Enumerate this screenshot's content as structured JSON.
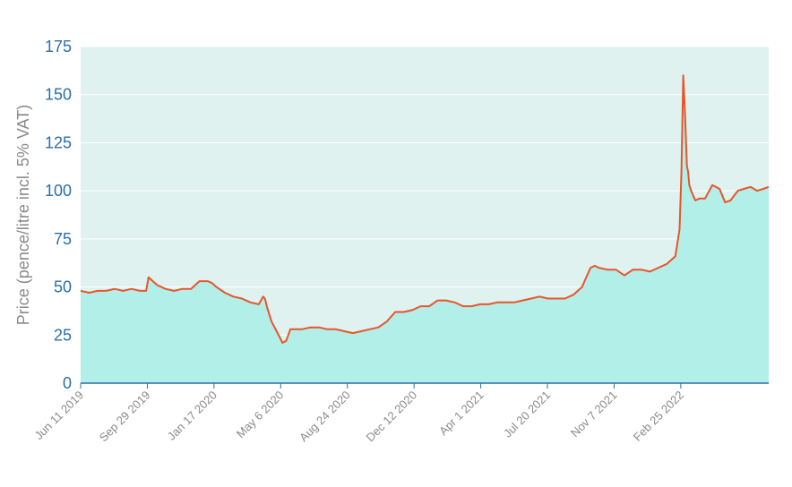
{
  "chart_data": {
    "type": "area",
    "title": "",
    "xlabel": "",
    "ylabel": "Price (pence/litre incl. 5% VAT)",
    "ylim": [
      0,
      175
    ],
    "yticks": [
      0,
      25,
      50,
      75,
      100,
      125,
      150,
      175
    ],
    "x_tick_labels": [
      "Jun 11 2019",
      "Sep 29 2019",
      "Jan 17 2020",
      "May 6 2020",
      "Aug 24 2020",
      "Dec 12 2020",
      "Apr 1 2021",
      "Jul 20 2021",
      "Nov 7 2021",
      "Feb 25 2022"
    ],
    "x_range": [
      "2019-06-11",
      "2022-07-20"
    ],
    "grid": true,
    "colors": {
      "line": "#e8552a",
      "fill": "#b2efe8",
      "plot_background": "#dff2f0",
      "grid": "#ffffff",
      "axis": "#2a6fa8"
    },
    "series": [
      {
        "x": [
          "2019-06-11",
          "2019-06-25",
          "2019-07-09",
          "2019-07-23",
          "2019-08-06",
          "2019-08-20",
          "2019-09-03",
          "2019-09-17",
          "2019-09-22",
          "2019-09-27",
          "2019-10-01",
          "2019-10-15",
          "2019-10-29",
          "2019-11-12",
          "2019-11-26",
          "2019-12-10",
          "2019-12-24",
          "2020-01-07",
          "2020-01-14",
          "2020-01-21",
          "2020-02-04",
          "2020-02-18",
          "2020-03-03",
          "2020-03-17",
          "2020-03-31",
          "2020-04-07",
          "2020-04-10",
          "2020-04-14",
          "2020-04-21",
          "2020-05-01",
          "2020-05-09",
          "2020-05-15",
          "2020-05-22",
          "2020-06-01",
          "2020-06-10",
          "2020-06-24",
          "2020-07-08",
          "2020-07-22",
          "2020-08-05",
          "2020-08-19",
          "2020-09-02",
          "2020-09-16",
          "2020-09-30",
          "2020-10-14",
          "2020-10-28",
          "2020-11-11",
          "2020-11-25",
          "2020-12-09",
          "2020-12-23",
          "2021-01-06",
          "2021-01-20",
          "2021-02-03",
          "2021-02-17",
          "2021-03-03",
          "2021-03-17",
          "2021-03-31",
          "2021-04-14",
          "2021-04-28",
          "2021-05-12",
          "2021-05-26",
          "2021-06-09",
          "2021-06-23",
          "2021-07-07",
          "2021-07-21",
          "2021-08-04",
          "2021-08-18",
          "2021-09-01",
          "2021-09-15",
          "2021-09-29",
          "2021-10-06",
          "2021-10-13",
          "2021-10-27",
          "2021-11-10",
          "2021-11-24",
          "2021-12-08",
          "2021-12-22",
          "2022-01-05",
          "2022-01-19",
          "2022-02-02",
          "2022-02-09",
          "2022-02-16",
          "2022-02-23",
          "2022-02-26",
          "2022-03-01",
          "2022-03-04",
          "2022-03-07",
          "2022-03-09",
          "2022-03-11",
          "2022-03-14",
          "2022-03-21",
          "2022-03-28",
          "2022-04-06",
          "2022-04-18",
          "2022-04-30",
          "2022-05-09",
          "2022-05-18",
          "2022-05-30",
          "2022-06-09",
          "2022-06-20",
          "2022-07-01",
          "2022-07-11",
          "2022-07-20"
        ],
        "y": [
          48,
          47,
          48,
          48,
          49,
          48,
          49,
          48,
          48,
          48,
          55,
          51,
          49,
          48,
          49,
          49,
          53,
          53,
          52,
          50,
          47,
          45,
          44,
          42,
          41,
          45,
          44,
          39,
          32,
          26,
          21,
          22,
          28,
          28,
          28,
          29,
          29,
          28,
          28,
          27,
          26,
          27,
          28,
          29,
          32,
          37,
          37,
          38,
          40,
          40,
          43,
          43,
          42,
          40,
          40,
          41,
          41,
          42,
          42,
          42,
          43,
          44,
          45,
          44,
          44,
          44,
          46,
          50,
          60,
          61,
          60,
          59,
          59,
          56,
          59,
          59,
          58,
          60,
          62,
          64,
          66,
          80,
          110,
          160,
          140,
          113,
          110,
          103,
          100,
          95,
          96,
          96,
          103,
          101,
          94,
          95,
          100,
          101,
          102,
          100,
          101,
          102
        ]
      }
    ]
  }
}
